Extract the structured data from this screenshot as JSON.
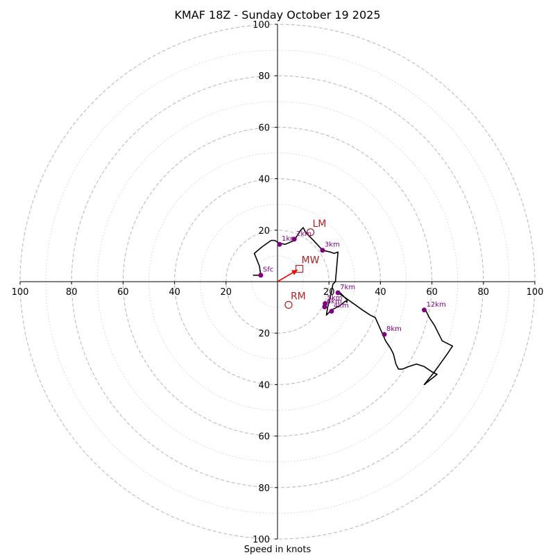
{
  "chart_data": {
    "type": "hodograph",
    "title": "KMAF 18Z - Sunday October 19 2025",
    "xlabel": "Speed in knots",
    "ylabel": "",
    "xlim": [
      -100,
      100
    ],
    "ylim": [
      -100,
      100
    ],
    "ring_major": [
      20,
      40,
      60,
      80,
      100
    ],
    "ring_minor": [
      10,
      30,
      50,
      70,
      90
    ],
    "ticks": [
      {
        "v": -100,
        "label": "100"
      },
      {
        "v": -80,
        "label": "80"
      },
      {
        "v": -60,
        "label": "60"
      },
      {
        "v": -40,
        "label": "40"
      },
      {
        "v": -20,
        "label": "20"
      },
      {
        "v": 20,
        "label": "20"
      },
      {
        "v": 40,
        "label": "40"
      },
      {
        "v": 60,
        "label": "60"
      },
      {
        "v": 80,
        "label": "80"
      },
      {
        "v": 100,
        "label": "100"
      }
    ],
    "trace": [
      [
        -9.5,
        2.5
      ],
      [
        -6.5,
        2.5
      ],
      [
        -7,
        6
      ],
      [
        -9,
        11
      ],
      [
        -6,
        13.5
      ],
      [
        -2.5,
        16
      ],
      [
        -1,
        16
      ],
      [
        0.5,
        15
      ],
      [
        3,
        14.5
      ],
      [
        6.5,
        16
      ],
      [
        9,
        20
      ],
      [
        10,
        21
      ],
      [
        11,
        19
      ],
      [
        14,
        16
      ],
      [
        17.5,
        12.2
      ],
      [
        20.5,
        11.5
      ],
      [
        22,
        11
      ],
      [
        23.5,
        11.5
      ],
      [
        22.5,
        0
      ],
      [
        21.5,
        -1
      ],
      [
        21,
        -4
      ],
      [
        19.5,
        -10
      ],
      [
        19,
        -13
      ],
      [
        21,
        -11
      ],
      [
        24,
        -9.5
      ],
      [
        26.5,
        -7.5
      ],
      [
        27,
        -8
      ],
      [
        27,
        -7
      ],
      [
        24,
        -4
      ],
      [
        23,
        -4
      ],
      [
        26,
        -6
      ],
      [
        33,
        -11
      ],
      [
        36,
        -13
      ],
      [
        38,
        -14
      ],
      [
        40,
        -18.5
      ],
      [
        42,
        -23
      ],
      [
        44,
        -26
      ],
      [
        45,
        -28
      ],
      [
        46,
        -32
      ],
      [
        47,
        -34
      ],
      [
        48.5,
        -34
      ],
      [
        51,
        -33
      ],
      [
        54,
        -32
      ],
      [
        57,
        -33
      ],
      [
        60,
        -35
      ],
      [
        62,
        -36
      ],
      [
        57,
        -40
      ],
      [
        61,
        -35
      ],
      [
        66,
        -28
      ],
      [
        68,
        -25
      ],
      [
        64,
        -23
      ],
      [
        61,
        -17
      ],
      [
        59,
        -14
      ],
      [
        57.5,
        -11
      ],
      [
        57,
        -11
      ]
    ],
    "height_markers": [
      {
        "label": "Sfc",
        "u": -6.5,
        "v": 2.5
      },
      {
        "label": "1km",
        "u": 0.8,
        "v": 14.5
      },
      {
        "label": "2km",
        "u": 6.5,
        "v": 16.5
      },
      {
        "label": "3km",
        "u": 17.5,
        "v": 12.2
      },
      {
        "label": "4km",
        "u": 21,
        "v": -11.5
      },
      {
        "label": "5km",
        "u": 18.5,
        "v": -8.5
      },
      {
        "label": "6km",
        "u": 18.3,
        "v": -9.8
      },
      {
        "label": "7km",
        "u": 23.5,
        "v": -4.3
      },
      {
        "label": "8km",
        "u": 41.5,
        "v": -20.5
      },
      {
        "label": "12km",
        "u": 57,
        "v": -11
      }
    ],
    "storm_motion": [
      {
        "label": "LM",
        "u": 12.8,
        "v": 19.2,
        "marker": "circle"
      },
      {
        "label": "MW",
        "u": 8.5,
        "v": 5.0,
        "marker": "square"
      },
      {
        "label": "RM",
        "u": 4.3,
        "v": -9.0,
        "marker": "circle"
      }
    ],
    "mean_wind_arrow": {
      "u": 8.5,
      "v": 5.0
    },
    "colors": {
      "trace": "#000000",
      "height_marker": "#800080",
      "storm_motion": "#b22222",
      "arrow": "#ff0000",
      "ring": "#bbbbbb"
    }
  }
}
